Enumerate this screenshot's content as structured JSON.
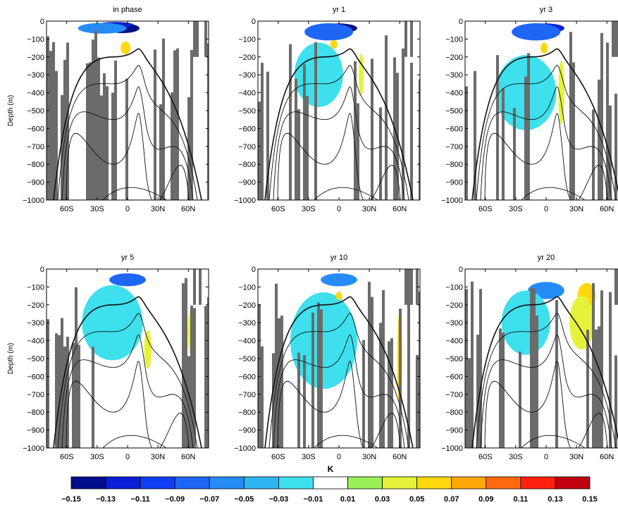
{
  "chart_data": {
    "type": "heatmap",
    "description_units": "latitude-depth sections of temperature anomaly",
    "panels": [
      {
        "title": "in phase",
        "ylabel": "Depth (m)",
        "blobs": [
          {
            "lat": -5,
            "depth": 40,
            "lat_w": 28,
            "depth_h": 45,
            "value": -0.15
          },
          {
            "lat": -12,
            "depth": 20,
            "lat_w": 30,
            "depth_h": 25,
            "value": -0.11
          },
          {
            "lat": -25,
            "depth": 40,
            "lat_w": 40,
            "depth_h": 50,
            "value": -0.05
          },
          {
            "lat": -2,
            "depth": 150,
            "lat_w": 8,
            "depth_h": 60,
            "value": 0.05
          }
        ]
      },
      {
        "title": "yr 1",
        "ylabel": "",
        "blobs": [
          {
            "lat": 0,
            "depth": 40,
            "lat_w": 30,
            "depth_h": 45,
            "value": -0.15
          },
          {
            "lat": -10,
            "depth": 60,
            "lat_w": 40,
            "depth_h": 80,
            "value": -0.09
          },
          {
            "lat": -20,
            "depth": 300,
            "lat_w": 40,
            "depth_h": 300,
            "value": -0.03
          },
          {
            "lat": -5,
            "depth": 130,
            "lat_w": 6,
            "depth_h": 40,
            "value": 0.05
          },
          {
            "lat": 22,
            "depth": 300,
            "lat_w": 4,
            "depth_h": 200,
            "value": 0.03
          }
        ]
      },
      {
        "title": "yr 3",
        "ylabel": "",
        "blobs": [
          {
            "lat": 0,
            "depth": 40,
            "lat_w": 30,
            "depth_h": 45,
            "value": -0.11
          },
          {
            "lat": -10,
            "depth": 60,
            "lat_w": 40,
            "depth_h": 80,
            "value": -0.07
          },
          {
            "lat": -20,
            "depth": 400,
            "lat_w": 50,
            "depth_h": 350,
            "value": -0.03
          },
          {
            "lat": -2,
            "depth": 150,
            "lat_w": 6,
            "depth_h": 50,
            "value": 0.05
          },
          {
            "lat": 15,
            "depth": 400,
            "lat_w": 5,
            "depth_h": 300,
            "value": 0.03
          }
        ]
      },
      {
        "title": "yr 5",
        "ylabel": "Depth (m)",
        "blobs": [
          {
            "lat": 0,
            "depth": 60,
            "lat_w": 30,
            "depth_h": 60,
            "value": -0.07
          },
          {
            "lat": -15,
            "depth": 300,
            "lat_w": 50,
            "depth_h": 350,
            "value": -0.03
          },
          {
            "lat": 20,
            "depth": 450,
            "lat_w": 6,
            "depth_h": 180,
            "value": 0.03
          },
          {
            "lat": 62,
            "depth": 350,
            "lat_w": 4,
            "depth_h": 200,
            "value": 0.03
          }
        ]
      },
      {
        "title": "yr 10",
        "ylabel": "",
        "blobs": [
          {
            "lat": 0,
            "depth": 60,
            "lat_w": 30,
            "depth_h": 60,
            "value": -0.05
          },
          {
            "lat": -15,
            "depth": 400,
            "lat_w": 55,
            "depth_h": 450,
            "value": -0.03
          },
          {
            "lat": 0,
            "depth": 150,
            "lat_w": 5,
            "depth_h": 40,
            "value": 0.05
          },
          {
            "lat": 60,
            "depth": 500,
            "lat_w": 4,
            "depth_h": 450,
            "value": 0.05
          }
        ]
      },
      {
        "title": "yr 20",
        "ylabel": "",
        "blobs": [
          {
            "lat": 0,
            "depth": 120,
            "lat_w": 30,
            "depth_h": 80,
            "value": -0.05
          },
          {
            "lat": -20,
            "depth": 300,
            "lat_w": 40,
            "depth_h": 300,
            "value": -0.03
          },
          {
            "lat": 40,
            "depth": 150,
            "lat_w": 15,
            "depth_h": 120,
            "value": 0.05
          },
          {
            "lat": 35,
            "depth": 300,
            "lat_w": 20,
            "depth_h": 250,
            "value": 0.03
          }
        ]
      }
    ],
    "x": {
      "min": -80,
      "max": 80,
      "ticks": [
        -60,
        -30,
        0,
        30,
        60
      ],
      "tick_labels": [
        "60S",
        "30S",
        "0",
        "30N",
        "60N"
      ]
    },
    "y": {
      "min": -1000,
      "max": 0,
      "ticks": [
        0,
        -100,
        -200,
        -300,
        -400,
        -500,
        -600,
        -700,
        -800,
        -900,
        -1000
      ],
      "tick_labels": [
        "0",
        "−100",
        "−200",
        "−300",
        "−400",
        "−500",
        "−600",
        "−700",
        "−800",
        "−900",
        "−1000"
      ]
    },
    "colorbar": {
      "label": "K",
      "tick_labels": [
        "−0.15",
        "−0.13",
        "−0.11",
        "−0.09",
        "−0.07",
        "−0.05",
        "−0.03",
        "−0.01",
        "0.01",
        "0.03",
        "0.05",
        "0.07",
        "0.09",
        "0.11",
        "0.13",
        "0.15"
      ],
      "colors": [
        "#000e8c",
        "#0a1fd6",
        "#1040f5",
        "#1e66f5",
        "#268cf5",
        "#2eb5f0",
        "#3de0ec",
        "#ffffff",
        "#9af058",
        "#e6f23a",
        "#ffd80e",
        "#ffa608",
        "#ff6a10",
        "#ff2010",
        "#c00010"
      ]
    },
    "colors": {
      "land": "#6b6b6b",
      "contour": "#111111"
    }
  }
}
